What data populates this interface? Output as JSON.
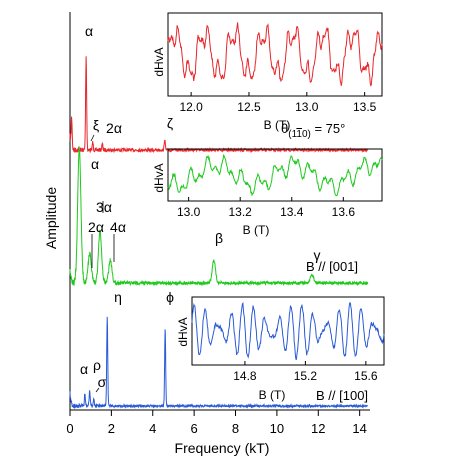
{
  "chart_data": {
    "type": "line",
    "xlabel": "Frequency (kT)",
    "ylabel": "Amplitude",
    "x_ticks": [
      "0",
      "2",
      "4",
      "6",
      "8",
      "10",
      "12",
      "14"
    ],
    "xlim": [
      0,
      14.5
    ],
    "panels": [
      {
        "id": "red",
        "color": "#e8262b",
        "annotation": "θ(110) = 75°",
        "annotation_main": "θ",
        "annotation_sub": "(1",
        "annotation_sub_bar": "1",
        "annotation_sub_end": "0)",
        "annotation_value": " = 75°",
        "peaks": [
          {
            "label": "α",
            "x": 0.78,
            "height": 0.85
          },
          {
            "label": "",
            "x": 0.08,
            "height": 0.28
          },
          {
            "label": "ξ",
            "x": 1.1,
            "height": 0.07
          },
          {
            "label": "2α",
            "x": 1.56,
            "height": 0.05
          },
          {
            "label": "ζ",
            "x": 4.58,
            "height": 0.1
          }
        ],
        "inset": {
          "xlabel": "B (T)",
          "ylabel": "dHvA",
          "xlim": [
            11.8,
            13.65
          ],
          "x_ticks": [
            "12.0",
            "12.5",
            "13.0",
            "13.5"
          ],
          "x_tick_values": [
            12.0,
            12.5,
            13.0,
            13.5
          ]
        }
      },
      {
        "id": "green",
        "color": "#1ec91e",
        "annotation": "B // [001]",
        "peaks": [
          {
            "label": "α",
            "x": 0.45,
            "height": 1.0
          },
          {
            "label": "2α",
            "x": 0.95,
            "height": 0.22
          },
          {
            "label": "3α",
            "x": 1.45,
            "height": 0.38
          },
          {
            "label": "4α",
            "x": 1.95,
            "height": 0.17
          },
          {
            "label": "β",
            "x": 6.95,
            "height": 0.17
          },
          {
            "label": "γ",
            "x": 11.7,
            "height": 0.06
          }
        ],
        "inset": {
          "xlabel": "B (T)",
          "ylabel": "dHvA",
          "xlim": [
            12.92,
            13.75
          ],
          "x_ticks": [
            "13.0",
            "13.2",
            "13.4",
            "13.6"
          ],
          "x_tick_values": [
            13.0,
            13.2,
            13.4,
            13.6
          ]
        }
      },
      {
        "id": "blue",
        "color": "#2a5bd7",
        "annotation": "B // [100]",
        "peaks": [
          {
            "label": "α",
            "x": 0.72,
            "height": 0.1
          },
          {
            "label": "ρ",
            "x": 0.95,
            "height": 0.13
          },
          {
            "label": "σ",
            "x": 1.15,
            "height": 0.06
          },
          {
            "label": "η",
            "x": 1.8,
            "height": 0.75
          },
          {
            "label": "ϕ",
            "x": 4.6,
            "height": 0.65
          }
        ],
        "inset": {
          "xlabel": "B (T)",
          "ylabel": "dHvA",
          "xlim": [
            14.45,
            15.72
          ],
          "x_ticks": [
            "14.8",
            "15.2",
            "15.6"
          ],
          "x_tick_values": [
            14.8,
            15.2,
            15.6
          ]
        }
      }
    ]
  }
}
